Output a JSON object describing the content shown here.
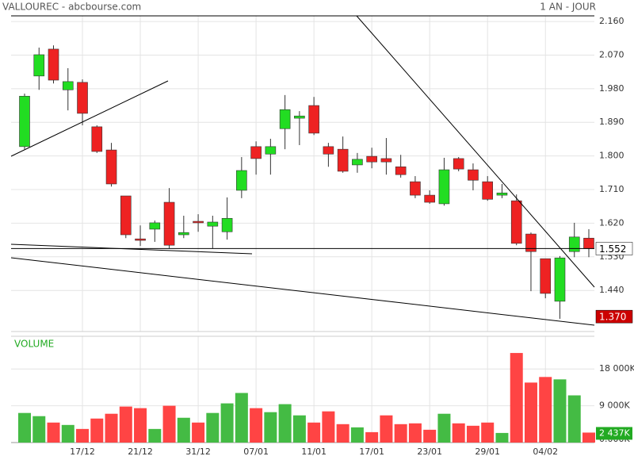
{
  "chart_data": {
    "type": "candlestick",
    "title": "VALLOUREC - abcbourse.com",
    "period": "1 AN - JOUR",
    "categories": [
      null,
      null,
      null,
      null,
      "17/12",
      null,
      null,
      null,
      "21/12",
      null,
      null,
      null,
      "31/12",
      null,
      null,
      null,
      "07/01",
      null,
      null,
      null,
      "11/01",
      null,
      null,
      null,
      "17/01",
      null,
      null,
      null,
      "23/01",
      null,
      null,
      null,
      "29/01",
      null,
      null,
      null,
      "04/02",
      null,
      null,
      null
    ],
    "open": [
      1.825,
      2.014,
      2.086,
      1.977,
      1.997,
      1.878,
      1.816,
      1.693,
      1.578,
      1.604,
      1.676,
      1.589,
      1.625,
      1.612,
      1.597,
      1.708,
      1.825,
      1.805,
      1.873,
      1.901,
      1.935,
      1.825,
      1.818,
      1.776,
      1.799,
      1.793,
      1.771,
      1.731,
      1.695,
      1.672,
      1.793,
      1.763,
      1.731,
      1.695,
      1.68,
      1.591,
      1.525,
      1.411,
      1.544,
      1.58
    ],
    "high": [
      1.967,
      2.09,
      2.096,
      2.035,
      2.005,
      1.882,
      1.835,
      1.693,
      1.614,
      1.627,
      1.714,
      1.64,
      1.644,
      1.64,
      1.689,
      1.797,
      1.839,
      1.846,
      1.963,
      1.92,
      1.958,
      1.835,
      1.852,
      1.808,
      1.822,
      1.848,
      1.803,
      1.746,
      1.708,
      1.795,
      1.797,
      1.78,
      1.746,
      1.725,
      1.697,
      1.595,
      1.525,
      1.532,
      1.621,
      1.604
    ],
    "low": [
      1.818,
      1.977,
      1.994,
      1.922,
      1.882,
      1.808,
      1.718,
      1.58,
      1.559,
      1.57,
      1.553,
      1.58,
      1.597,
      1.553,
      1.576,
      1.687,
      1.75,
      1.75,
      1.818,
      1.829,
      1.856,
      1.771,
      1.755,
      1.755,
      1.767,
      1.75,
      1.742,
      1.687,
      1.672,
      1.667,
      1.759,
      1.708,
      1.68,
      1.687,
      1.561,
      1.438,
      1.419,
      1.364,
      1.529,
      1.529
    ],
    "close": [
      1.96,
      2.071,
      2.003,
      1.999,
      1.914,
      1.812,
      1.725,
      1.589,
      1.574,
      1.621,
      1.561,
      1.595,
      1.621,
      1.623,
      1.633,
      1.761,
      1.793,
      1.825,
      1.924,
      1.907,
      1.861,
      1.805,
      1.759,
      1.791,
      1.784,
      1.784,
      1.75,
      1.695,
      1.676,
      1.763,
      1.765,
      1.735,
      1.684,
      1.701,
      1.566,
      1.544,
      1.432,
      1.527,
      1.583,
      1.552
    ],
    "up_color": "#22dd22",
    "down_color": "#ee2222",
    "ylim": [
      1.33,
      2.175
    ],
    "yticks": [
      {
        "value": 2.16,
        "label": "2.160"
      },
      {
        "value": 2.07,
        "label": "2.070"
      },
      {
        "value": 1.98,
        "label": "1.980"
      },
      {
        "value": 1.89,
        "label": "1.890"
      },
      {
        "value": 1.8,
        "label": "1.800"
      },
      {
        "value": 1.71,
        "label": "1.710"
      },
      {
        "value": 1.62,
        "label": "1.620"
      },
      {
        "value": 1.53,
        "label": "1.530"
      },
      {
        "value": 1.44,
        "label": "1.440"
      }
    ],
    "grid": true,
    "markers": [
      {
        "value": 1.552,
        "label": "1.552",
        "color": "#ffffff",
        "text_color": "#000000",
        "line": true
      },
      {
        "value": 1.37,
        "label": "1.370",
        "color": "#cc0000",
        "text_color": "#ffffff",
        "line": false
      }
    ],
    "volume": {
      "label": "VOLUME",
      "values": [
        7239,
        6457,
        4891,
        4304,
        3326,
        5870,
        7043,
        8804,
        8413,
        3326,
        9000,
        6065,
        4891,
        7239,
        9587,
        12130,
        8413,
        7435,
        9391,
        6652,
        4891,
        7630,
        4500,
        3717,
        2543,
        6652,
        4500,
        4696,
        3130,
        7043,
        4696,
        4109,
        4891,
        2348,
        21913,
        14674,
        16043,
        15457,
        11543,
        2437
      ],
      "value_labels": [
        null,
        null,
        null,
        null,
        null,
        null,
        null,
        null,
        null,
        null,
        null,
        null,
        null,
        null,
        null,
        null,
        null,
        null,
        null,
        null,
        null,
        null,
        null,
        null,
        null,
        null,
        null,
        null,
        null,
        null,
        null,
        null,
        null,
        null,
        null,
        null,
        null,
        null,
        null,
        "2 437K"
      ],
      "ylim": [
        0,
        26000
      ],
      "yticks": [
        {
          "value": 18000,
          "label": "18 000K"
        },
        {
          "value": 9000,
          "label": "9 000K"
        },
        {
          "value": 0,
          "label": "0.000K"
        }
      ]
    }
  }
}
